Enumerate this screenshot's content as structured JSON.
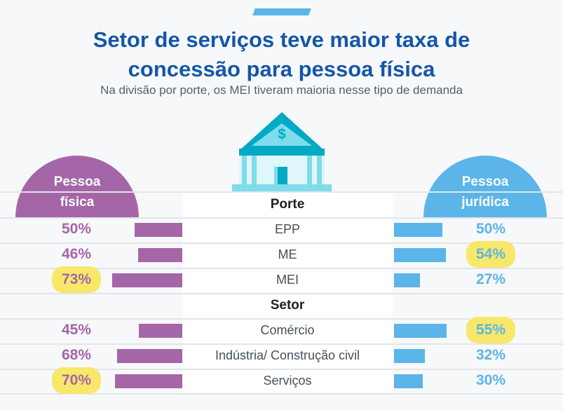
{
  "header": {
    "title_line1": "Setor de serviços teve maior taxa de",
    "title_line2": "concessão para pessoa física",
    "subtitle": "Na divisão por porte, os MEI tiveram maioria nesse tipo de demanda"
  },
  "icon": "bank-building-dollar-icon",
  "colors": {
    "pessoa_fisica": "#a566a8",
    "pessoa_juridica": "#5bb5e8",
    "highlight": "#f8e86a",
    "title": "#1457a8"
  },
  "chart_data": {
    "type": "bar",
    "orientation": "horizontal-butterfly",
    "series": [
      {
        "name": "Pessoa física",
        "values": [
          50,
          46,
          73,
          45,
          68,
          70
        ],
        "unit": "%"
      },
      {
        "name": "Pessoa jurídica",
        "values": [
          50,
          54,
          27,
          55,
          32,
          30
        ],
        "unit": "%"
      }
    ],
    "groups": [
      {
        "name": "Porte",
        "categories": [
          "EPP",
          "ME",
          "MEI"
        ]
      },
      {
        "name": "Setor",
        "categories": [
          "Comércio",
          "Indústria/ Construção civil",
          "Serviços"
        ]
      }
    ],
    "categories": [
      "EPP",
      "ME",
      "MEI",
      "Comércio",
      "Indústria/ Construção civil",
      "Serviços"
    ],
    "labels_left": [
      "50%",
      "46%",
      "73%",
      "45%",
      "68%",
      "70%"
    ],
    "labels_right": [
      "50%",
      "54%",
      "27%",
      "55%",
      "32%",
      "30%"
    ],
    "highlighted_left": [
      false,
      false,
      true,
      false,
      false,
      true
    ],
    "highlighted_right": [
      false,
      true,
      false,
      true,
      false,
      false
    ]
  },
  "legend": {
    "left_line1": "Pessoa",
    "left_line2": "física",
    "right_line1": "Pessoa",
    "right_line2": "jurídica"
  }
}
